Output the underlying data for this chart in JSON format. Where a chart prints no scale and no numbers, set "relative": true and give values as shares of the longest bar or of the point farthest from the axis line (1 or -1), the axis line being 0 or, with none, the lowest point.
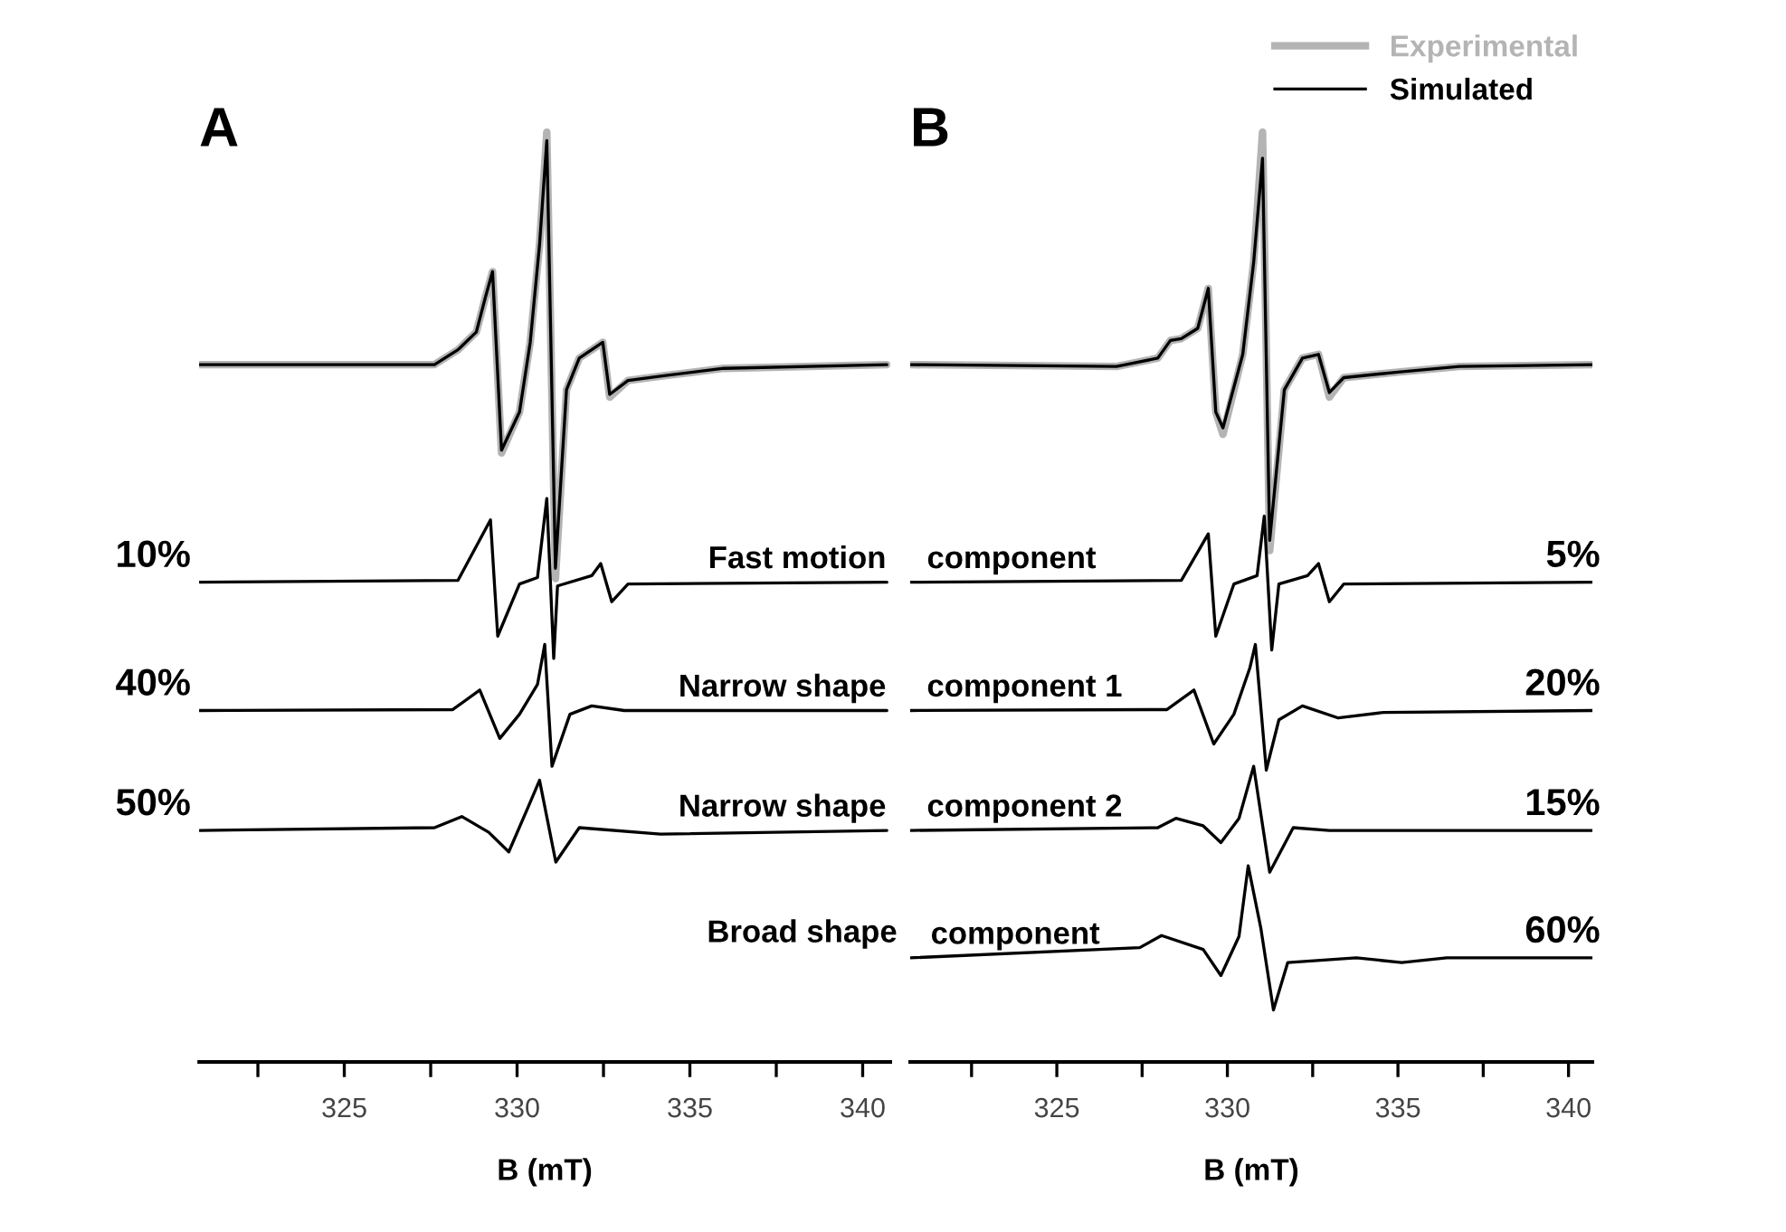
{
  "chart_data": [
    {
      "type": "line",
      "title": "A",
      "xlabel": "B (mT)",
      "relative": true,
      "xlim": [
        320.8,
        340.8
      ],
      "xticks": [
        {
          "value": 322.5,
          "label": null
        },
        325,
        {
          "value": 327.5,
          "label": null
        },
        330,
        {
          "value": 332.5,
          "label": null
        },
        335,
        {
          "value": 337.5,
          "label": null
        },
        340
      ],
      "grid": false,
      "legend": false,
      "tick_labels": "x",
      "series": [
        {
          "color": "#b4b4b4",
          "x": [
            320.8,
            327.61,
            328.29,
            328.82,
            329.08,
            329.29,
            329.55,
            330.07,
            330.38,
            330.65,
            330.86,
            331.11,
            331.43,
            331.8,
            332.48,
            332.68,
            333.21,
            334.25,
            335.98,
            340.7
          ],
          "values": [
            0.75,
            0.75,
            0.766,
            0.785,
            0.822,
            0.85,
            0.655,
            0.699,
            0.774,
            0.879,
            1.0,
            0.52,
            0.723,
            0.757,
            0.774,
            0.715,
            0.733,
            0.738,
            0.746,
            0.75
          ]
        },
        {
          "color": "#000000",
          "x": [
            320.8,
            327.61,
            328.29,
            328.82,
            329.08,
            329.29,
            329.55,
            330.07,
            330.38,
            330.65,
            330.86,
            331.11,
            331.43,
            331.8,
            332.48,
            332.68,
            333.21,
            334.25,
            335.98,
            340.7
          ],
          "values": [
            0.75,
            0.75,
            0.766,
            0.785,
            0.822,
            0.85,
            0.658,
            0.699,
            0.774,
            0.879,
            0.991,
            0.531,
            0.723,
            0.757,
            0.774,
            0.718,
            0.733,
            0.738,
            0.746,
            0.75
          ]
        },
        {
          "color": "#000000",
          "x": [
            320.8,
            328.29,
            329.23,
            329.44,
            330.07,
            330.59,
            330.86,
            331.06,
            331.17,
            332.16,
            332.42,
            332.74,
            333.21,
            340.7
          ],
          "values": [
            0.516,
            0.518,
            0.583,
            0.458,
            0.514,
            0.521,
            0.606,
            0.434,
            0.512,
            0.523,
            0.536,
            0.495,
            0.514,
            0.516
          ]
        },
        {
          "color": "#000000",
          "x": [
            320.8,
            328.14,
            328.92,
            329.5,
            330.07,
            330.59,
            330.8,
            331.01,
            331.53,
            332.16,
            333.1,
            340.7
          ],
          "values": [
            0.378,
            0.379,
            0.4,
            0.348,
            0.374,
            0.406,
            0.449,
            0.318,
            0.374,
            0.383,
            0.378,
            0.378
          ]
        },
        {
          "color": "#000000",
          "x": [
            320.8,
            327.61,
            328.4,
            329.18,
            329.76,
            330.33,
            330.65,
            331.12,
            331.8,
            334.15,
            340.7
          ],
          "values": [
            0.249,
            0.252,
            0.264,
            0.247,
            0.226,
            0.275,
            0.303,
            0.215,
            0.252,
            0.245,
            0.249
          ]
        }
      ],
      "annotations": [
        {
          "text": "10%",
          "x": 320.56,
          "y": 0.516
        },
        {
          "text": "Fast motion",
          "x": 340.68,
          "y": 0.516
        },
        {
          "text": "40%",
          "x": 320.56,
          "y": 0.378
        },
        {
          "text": "Narrow shape",
          "x": 340.68,
          "y": 0.378
        },
        {
          "text": "50%",
          "x": 320.56,
          "y": 0.249
        },
        {
          "text": "Narrow shape",
          "x": 340.68,
          "y": 0.249
        },
        "Broad shape"
      ]
    },
    {
      "type": "line",
      "title": "B",
      "xlabel": "B (mT)",
      "relative": true,
      "xlim": [
        320.7,
        340.7
      ],
      "xticks": [
        {
          "value": 322.5,
          "label": null
        },
        325,
        {
          "value": 327.5,
          "label": null
        },
        330,
        {
          "value": 332.5,
          "label": null
        },
        335,
        {
          "value": 337.5,
          "label": null
        },
        340
      ],
      "grid": false,
      "legend": "top right",
      "tick_labels": "x",
      "series": [
        {
          "name": "Experimental",
          "color": "#b4b4b4",
          "x": [
            320.7,
            326.75,
            327.96,
            328.33,
            328.65,
            329.13,
            329.44,
            329.66,
            329.87,
            330.45,
            330.77,
            331.03,
            331.24,
            331.67,
            332.2,
            332.67,
            332.99,
            333.41,
            335.0,
            336.8,
            340.7
          ],
          "values": [
            0.75,
            0.748,
            0.757,
            0.776,
            0.778,
            0.789,
            0.832,
            0.699,
            0.675,
            0.761,
            0.86,
            1.0,
            0.55,
            0.723,
            0.757,
            0.761,
            0.715,
            0.736,
            0.742,
            0.748,
            0.75
          ]
        },
        {
          "name": "Simulated",
          "color": "#000000",
          "x": [
            320.7,
            326.75,
            327.96,
            328.33,
            328.65,
            329.13,
            329.44,
            329.66,
            329.87,
            330.45,
            330.77,
            331.03,
            331.24,
            331.67,
            332.2,
            332.67,
            332.99,
            333.41,
            335.0,
            336.8,
            340.7
          ],
          "values": [
            0.75,
            0.748,
            0.757,
            0.776,
            0.778,
            0.789,
            0.832,
            0.699,
            0.682,
            0.761,
            0.86,
            0.972,
            0.561,
            0.723,
            0.757,
            0.761,
            0.72,
            0.736,
            0.742,
            0.748,
            0.75
          ]
        },
        {
          "color": "#000000",
          "x": [
            320.7,
            328.65,
            329.44,
            329.66,
            330.19,
            330.87,
            331.08,
            331.3,
            331.51,
            332.35,
            332.67,
            332.99,
            333.41,
            340.7
          ],
          "values": [
            0.516,
            0.518,
            0.568,
            0.458,
            0.514,
            0.523,
            0.587,
            0.443,
            0.514,
            0.523,
            0.536,
            0.495,
            0.514,
            0.516
          ]
        },
        {
          "color": "#000000",
          "x": [
            320.7,
            328.23,
            329.02,
            329.6,
            330.19,
            330.66,
            330.82,
            331.14,
            331.51,
            332.2,
            333.25,
            334.58,
            340.7
          ],
          "values": [
            0.378,
            0.379,
            0.4,
            0.342,
            0.374,
            0.424,
            0.449,
            0.314,
            0.368,
            0.383,
            0.37,
            0.376,
            0.378
          ]
        },
        {
          "color": "#000000",
          "x": [
            320.7,
            327.96,
            328.49,
            329.29,
            329.81,
            330.34,
            330.77,
            331.24,
            331.93,
            332.99,
            340.7
          ],
          "values": [
            0.249,
            0.252,
            0.262,
            0.254,
            0.236,
            0.262,
            0.318,
            0.204,
            0.252,
            0.249,
            0.249
          ]
        },
        {
          "color": "#000000",
          "x": [
            320.7,
            327.43,
            328.07,
            329.29,
            329.81,
            330.34,
            330.61,
            330.98,
            331.35,
            331.77,
            333.78,
            335.11,
            336.43,
            340.7
          ],
          "values": [
            0.112,
            0.123,
            0.136,
            0.121,
            0.093,
            0.135,
            0.211,
            0.144,
            0.056,
            0.107,
            0.112,
            0.107,
            0.112,
            0.112
          ]
        }
      ],
      "annotations": [
        {
          "text": "component",
          "x": 321.19,
          "y": 0.516
        },
        {
          "text": "5%",
          "x": 340.93,
          "y": 0.516
        },
        {
          "text": "component 1",
          "x": 321.19,
          "y": 0.378
        },
        {
          "text": "20%",
          "x": 340.93,
          "y": 0.378
        },
        {
          "text": "component 2",
          "x": 321.19,
          "y": 0.249
        },
        {
          "text": "15%",
          "x": 340.93,
          "y": 0.249
        },
        {
          "text": "component",
          "x": 321.3,
          "y": 0.112
        },
        {
          "text": "60%",
          "x": 340.93,
          "y": 0.112
        }
      ]
    }
  ]
}
